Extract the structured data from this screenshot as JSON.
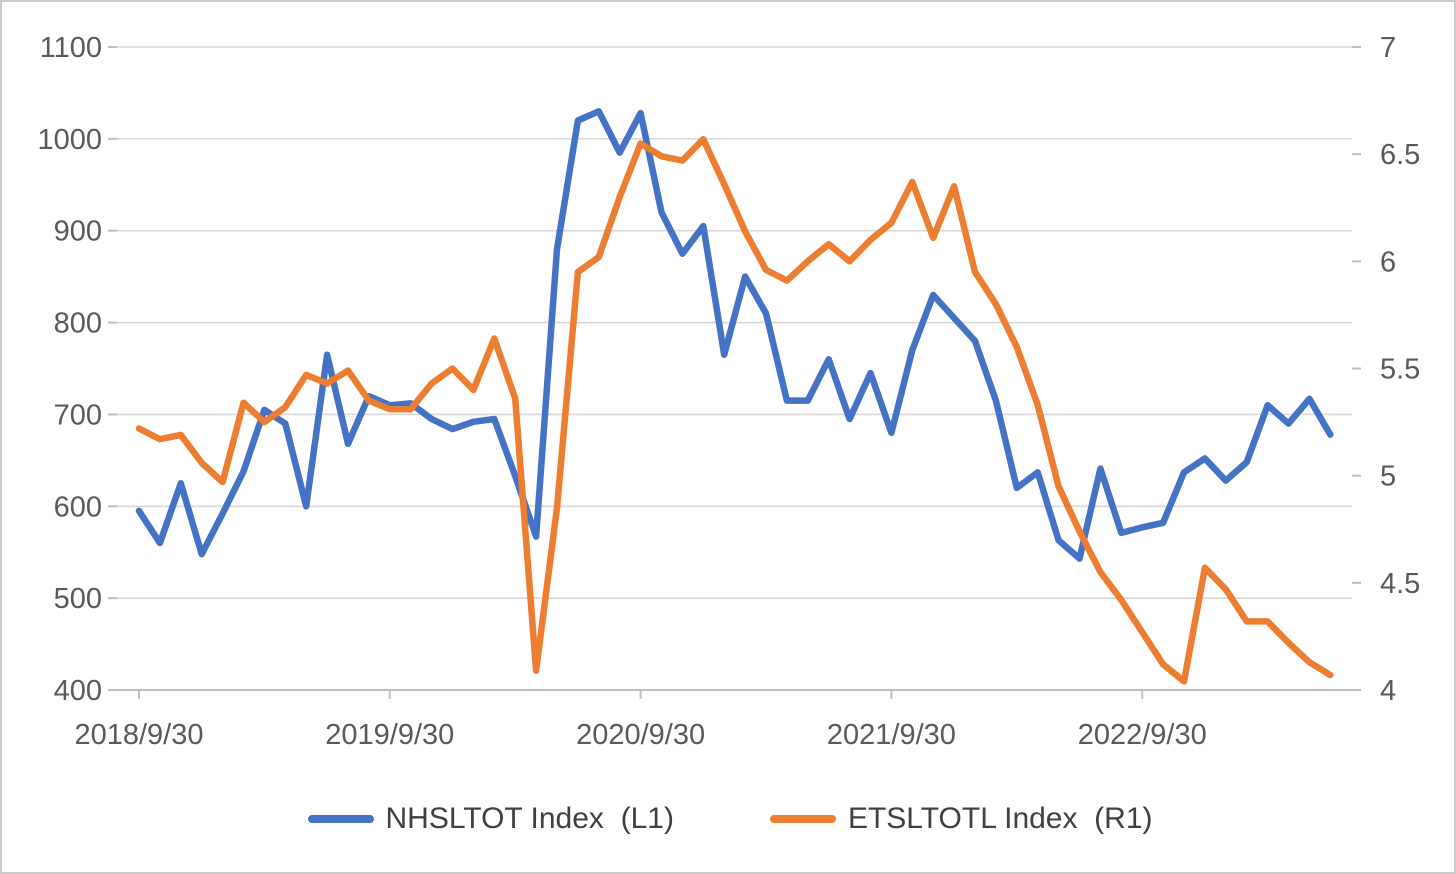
{
  "chart_data": {
    "type": "line",
    "title": "",
    "n_points": 58,
    "x_start_label": "2018/9/30",
    "x_tick_labels": [
      "2018/9/30",
      "2019/9/30",
      "2020/9/30",
      "2021/9/30",
      "2022/9/30"
    ],
    "x_tick_indices": [
      0,
      12,
      24,
      36,
      48
    ],
    "left_axis": {
      "min": 400,
      "max": 1100,
      "step": 100,
      "ticks": [
        "1100",
        "1000",
        "900",
        "800",
        "700",
        "600",
        "500",
        "400"
      ]
    },
    "right_axis": {
      "min": 4,
      "max": 7,
      "step": 0.5,
      "ticks": [
        "7",
        "6.5",
        "6",
        "5.5",
        "5",
        "4.5",
        "4"
      ]
    },
    "grid": true,
    "legend_position": "bottom",
    "series": [
      {
        "name": "NHSLTOT Index  (L1)",
        "axis": "left",
        "color": "#4472C4",
        "values": [
          595,
          560,
          625,
          548,
          592,
          638,
          705,
          690,
          600,
          765,
          668,
          720,
          710,
          712,
          695,
          684,
          692,
          695,
          633,
          567,
          880,
          1020,
          1030,
          985,
          1028,
          920,
          875,
          905,
          765,
          850,
          810,
          715,
          715,
          760,
          695,
          745,
          680,
          770,
          830,
          805,
          780,
          715,
          620,
          637,
          563,
          543,
          641,
          571,
          577,
          582,
          637,
          652,
          628,
          648,
          710,
          690,
          717,
          678
        ]
      },
      {
        "name": "ETSLTOTL Index  (R1)",
        "axis": "right",
        "color": "#ED7D31",
        "values": [
          5.22,
          5.17,
          5.19,
          5.06,
          4.97,
          5.34,
          5.25,
          5.32,
          5.47,
          5.43,
          5.49,
          5.35,
          5.31,
          5.31,
          5.43,
          5.5,
          5.4,
          5.64,
          5.36,
          4.09,
          4.85,
          5.95,
          6.02,
          6.3,
          6.55,
          6.49,
          6.47,
          6.57,
          6.36,
          6.14,
          5.96,
          5.91,
          6.0,
          6.08,
          6.0,
          6.1,
          6.18,
          6.37,
          6.11,
          6.35,
          5.95,
          5.8,
          5.6,
          5.33,
          4.95,
          4.74,
          4.55,
          4.42,
          4.27,
          4.12,
          4.04,
          4.57,
          4.47,
          4.32,
          4.32,
          4.22,
          4.13,
          4.07
        ]
      }
    ]
  },
  "legend": {
    "items": [
      {
        "label": "NHSLTOT Index  (L1)",
        "color": "#4472C4"
      },
      {
        "label": "ETSLTOTL Index  (R1)",
        "color": "#ED7D31"
      }
    ]
  },
  "colors": {
    "background": "#FFFFFF",
    "border": "#CBCBCB",
    "gridline": "#D9D9D9",
    "axis_line": "#BFBFBF",
    "tick_label": "#595959",
    "legend_text": "#404040",
    "series_blue": "#4472C4",
    "series_orange": "#ED7D31"
  }
}
